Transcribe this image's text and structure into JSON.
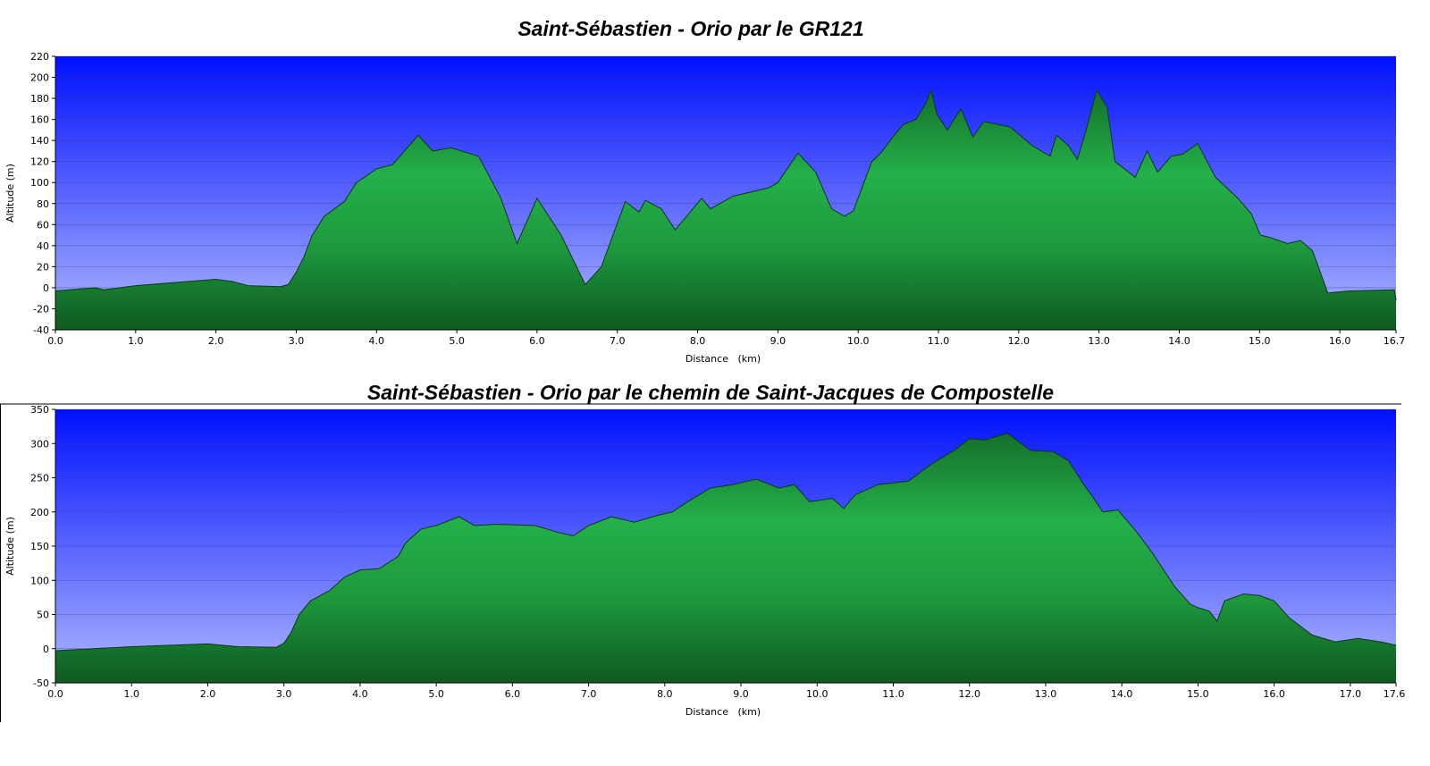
{
  "chart_data": [
    {
      "type": "area",
      "title": "Saint-Sébastien - Orio par le GR121",
      "xlabel": "Distance   (km)",
      "ylabel": "Altitude (m)",
      "color": "#22aa44",
      "grid": true,
      "xlim": [
        0,
        16.7
      ],
      "ylim": [
        -40,
        220
      ],
      "yticks": [
        -40,
        -20,
        0,
        20,
        40,
        60,
        80,
        100,
        120,
        140,
        160,
        180,
        200,
        220
      ],
      "xticks": [
        {
          "value": 0,
          "label": "0.0"
        },
        {
          "value": 1,
          "label": "1.0"
        },
        {
          "value": 2,
          "label": "2.0"
        },
        {
          "value": 3,
          "label": "3.0"
        },
        {
          "value": 4,
          "label": "4.0"
        },
        {
          "value": 5,
          "label": "5.0"
        },
        {
          "value": 6,
          "label": "6.0"
        },
        {
          "value": 7,
          "label": "7.0"
        },
        {
          "value": 8,
          "label": "8.0"
        },
        {
          "value": 9,
          "label": "9.0"
        },
        {
          "value": 10,
          "label": "10.0"
        },
        {
          "value": 11,
          "label": "11.0"
        },
        {
          "value": 12,
          "label": "12.0"
        },
        {
          "value": 13,
          "label": "13.0"
        },
        {
          "value": 14,
          "label": "14.0"
        },
        {
          "value": 15,
          "label": "15.0"
        },
        {
          "value": 16,
          "label": "16.0"
        },
        {
          "value": 16.7,
          "label": "16.7"
        }
      ],
      "x": [
        0,
        0.5,
        0.6,
        1.0,
        1.5,
        2.0,
        2.2,
        2.4,
        2.8,
        2.9,
        3.0,
        3.1,
        3.2,
        3.35,
        3.6,
        3.75,
        3.85,
        4.0,
        4.2,
        4.52,
        4.7,
        4.93,
        5.27,
        5.55,
        5.75,
        6.0,
        6.3,
        6.6,
        6.8,
        7.1,
        7.27,
        7.35,
        7.55,
        7.72,
        8.05,
        8.16,
        8.44,
        8.89,
        9.0,
        9.25,
        9.47,
        9.67,
        9.83,
        9.94,
        10.17,
        10.28,
        10.45,
        10.56,
        10.72,
        10.84,
        10.91,
        10.98,
        11.11,
        11.28,
        11.43,
        11.56,
        11.89,
        12.17,
        12.39,
        12.47,
        12.62,
        12.73,
        12.84,
        12.97,
        13.1,
        13.2,
        13.45,
        13.6,
        13.73,
        13.9,
        14.04,
        14.23,
        14.45,
        14.73,
        14.9,
        15.01,
        15.12,
        15.35,
        15.51,
        15.66,
        15.85,
        16.12,
        16.68,
        16.7
      ],
      "values": [
        -3,
        0,
        -2,
        2,
        5,
        8,
        6,
        2,
        1,
        3,
        15,
        30,
        50,
        68,
        82,
        100,
        105,
        113,
        117,
        145,
        130,
        133,
        125,
        85,
        42,
        85,
        50,
        3,
        20,
        82,
        72,
        83,
        75,
        55,
        85,
        75,
        87,
        95,
        100,
        128,
        110,
        75,
        68,
        73,
        120,
        128,
        145,
        155,
        160,
        175,
        188,
        165,
        150,
        170,
        143,
        158,
        153,
        135,
        125,
        145,
        135,
        122,
        150,
        188,
        172,
        120,
        105,
        130,
        110,
        125,
        127,
        137,
        105,
        85,
        70,
        50,
        48,
        42,
        45,
        35,
        -5,
        -3,
        -2,
        -12
      ]
    },
    {
      "type": "area",
      "title": "Saint-Sébastien - Orio par le chemin de Saint-Jacques de Compostelle",
      "xlabel": "Distance   (km)",
      "ylabel": "Altitude (m)",
      "color": "#22aa44",
      "grid": true,
      "xlim": [
        0,
        17.6
      ],
      "ylim": [
        -50,
        350
      ],
      "yticks": [
        -50,
        0,
        50,
        100,
        150,
        200,
        250,
        300,
        350
      ],
      "xticks": [
        {
          "value": 0,
          "label": "0.0"
        },
        {
          "value": 1,
          "label": "1.0"
        },
        {
          "value": 2,
          "label": "2.0"
        },
        {
          "value": 3,
          "label": "3.0"
        },
        {
          "value": 4,
          "label": "4.0"
        },
        {
          "value": 5,
          "label": "5.0"
        },
        {
          "value": 6,
          "label": "6.0"
        },
        {
          "value": 7,
          "label": "7.0"
        },
        {
          "value": 8,
          "label": "8.0"
        },
        {
          "value": 9,
          "label": "9.0"
        },
        {
          "value": 10,
          "label": "10.0"
        },
        {
          "value": 11,
          "label": "11.0"
        },
        {
          "value": 12,
          "label": "12.0"
        },
        {
          "value": 13,
          "label": "13.0"
        },
        {
          "value": 14,
          "label": "14.0"
        },
        {
          "value": 15,
          "label": "15.0"
        },
        {
          "value": 16,
          "label": "16.0"
        },
        {
          "value": 17,
          "label": "17.0"
        },
        {
          "value": 17.6,
          "label": "17.6"
        }
      ],
      "x": [
        0,
        0.5,
        1.0,
        2.0,
        2.4,
        2.9,
        3.0,
        3.1,
        3.2,
        3.35,
        3.6,
        3.8,
        4.0,
        4.25,
        4.5,
        4.6,
        4.8,
        5.0,
        5.3,
        5.5,
        5.8,
        6.3,
        6.6,
        6.8,
        7.0,
        7.3,
        7.6,
        7.9,
        8.1,
        8.3,
        8.6,
        8.9,
        9.2,
        9.5,
        9.7,
        9.9,
        10.2,
        10.35,
        10.5,
        10.8,
        11.2,
        11.5,
        11.8,
        12.0,
        12.2,
        12.5,
        12.8,
        13.1,
        13.3,
        13.5,
        13.6,
        13.75,
        13.95,
        14.2,
        14.4,
        14.7,
        14.9,
        15.0,
        15.15,
        15.25,
        15.35,
        15.6,
        15.8,
        16.0,
        16.2,
        16.5,
        16.8,
        17.1,
        17.4,
        17.6
      ],
      "values": [
        -3,
        0,
        3,
        7,
        3,
        2,
        8,
        25,
        50,
        70,
        85,
        105,
        115,
        117,
        135,
        155,
        175,
        180,
        193,
        180,
        182,
        180,
        170,
        165,
        180,
        193,
        185,
        195,
        200,
        215,
        235,
        240,
        248,
        235,
        240,
        215,
        220,
        205,
        225,
        240,
        245,
        270,
        290,
        307,
        305,
        315,
        290,
        288,
        275,
        240,
        225,
        200,
        203,
        170,
        140,
        90,
        65,
        60,
        55,
        40,
        70,
        80,
        78,
        70,
        45,
        20,
        10,
        15,
        10,
        5
      ]
    }
  ]
}
